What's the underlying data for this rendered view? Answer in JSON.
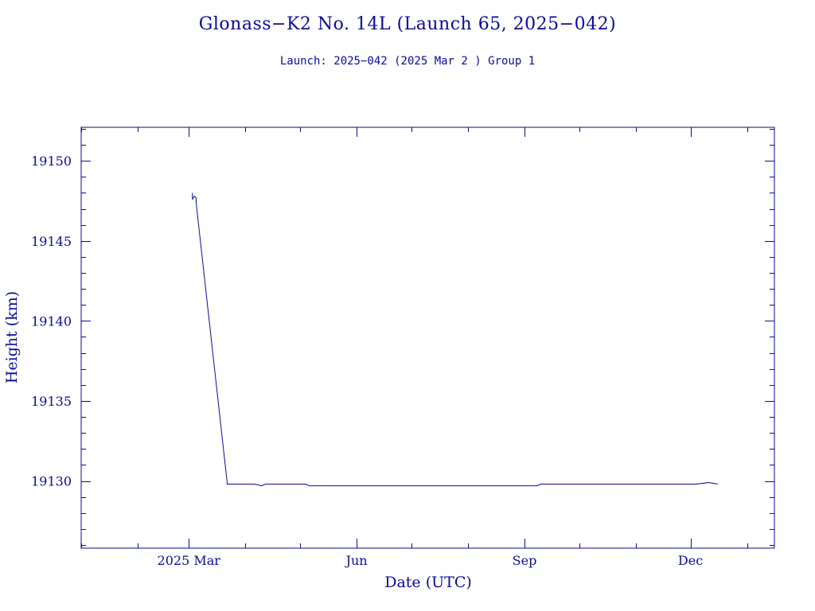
{
  "chart_data": {
    "type": "line",
    "title": "Glonass−K2 No. 14L (Launch 65, 2025−042)",
    "subtitle": "Launch: 2025−042  (2025 Mar  2 )  Group 1",
    "xlabel": "Date (UTC)",
    "ylabel": "Height (km)",
    "xlim": [
      "2025-01-01",
      "2026-01-16"
    ],
    "ylim": [
      19125.8,
      19152.1
    ],
    "x_ticks": [
      {
        "date": "2025-03-01",
        "label": "2025 Mar"
      },
      {
        "date": "2025-06-01",
        "label": "Jun"
      },
      {
        "date": "2025-09-01",
        "label": "Sep"
      },
      {
        "date": "2025-12-01",
        "label": "Dec"
      }
    ],
    "y_ticks": [
      19130,
      19135,
      19140,
      19145,
      19150
    ],
    "grid": false,
    "color": "#0a0a96",
    "series": [
      {
        "x": [
          "2025-03-03",
          "2025-03-03",
          "2025-03-04",
          "2025-03-05",
          "2025-03-05",
          "2025-03-22",
          "2025-03-22",
          "2025-04-06",
          "2025-04-10",
          "2025-04-12",
          "2025-04-27",
          "2025-05-04",
          "2025-05-06",
          "2025-09-08",
          "2025-09-10",
          "2025-12-04",
          "2025-12-11",
          "2025-12-16"
        ],
        "y": [
          19148.0,
          19147.6,
          19147.8,
          19147.7,
          19147.4,
          19129.9,
          19129.8,
          19129.8,
          19129.7,
          19129.8,
          19129.8,
          19129.8,
          19129.7,
          19129.7,
          19129.8,
          19129.8,
          19129.9,
          19129.8
        ]
      }
    ]
  }
}
